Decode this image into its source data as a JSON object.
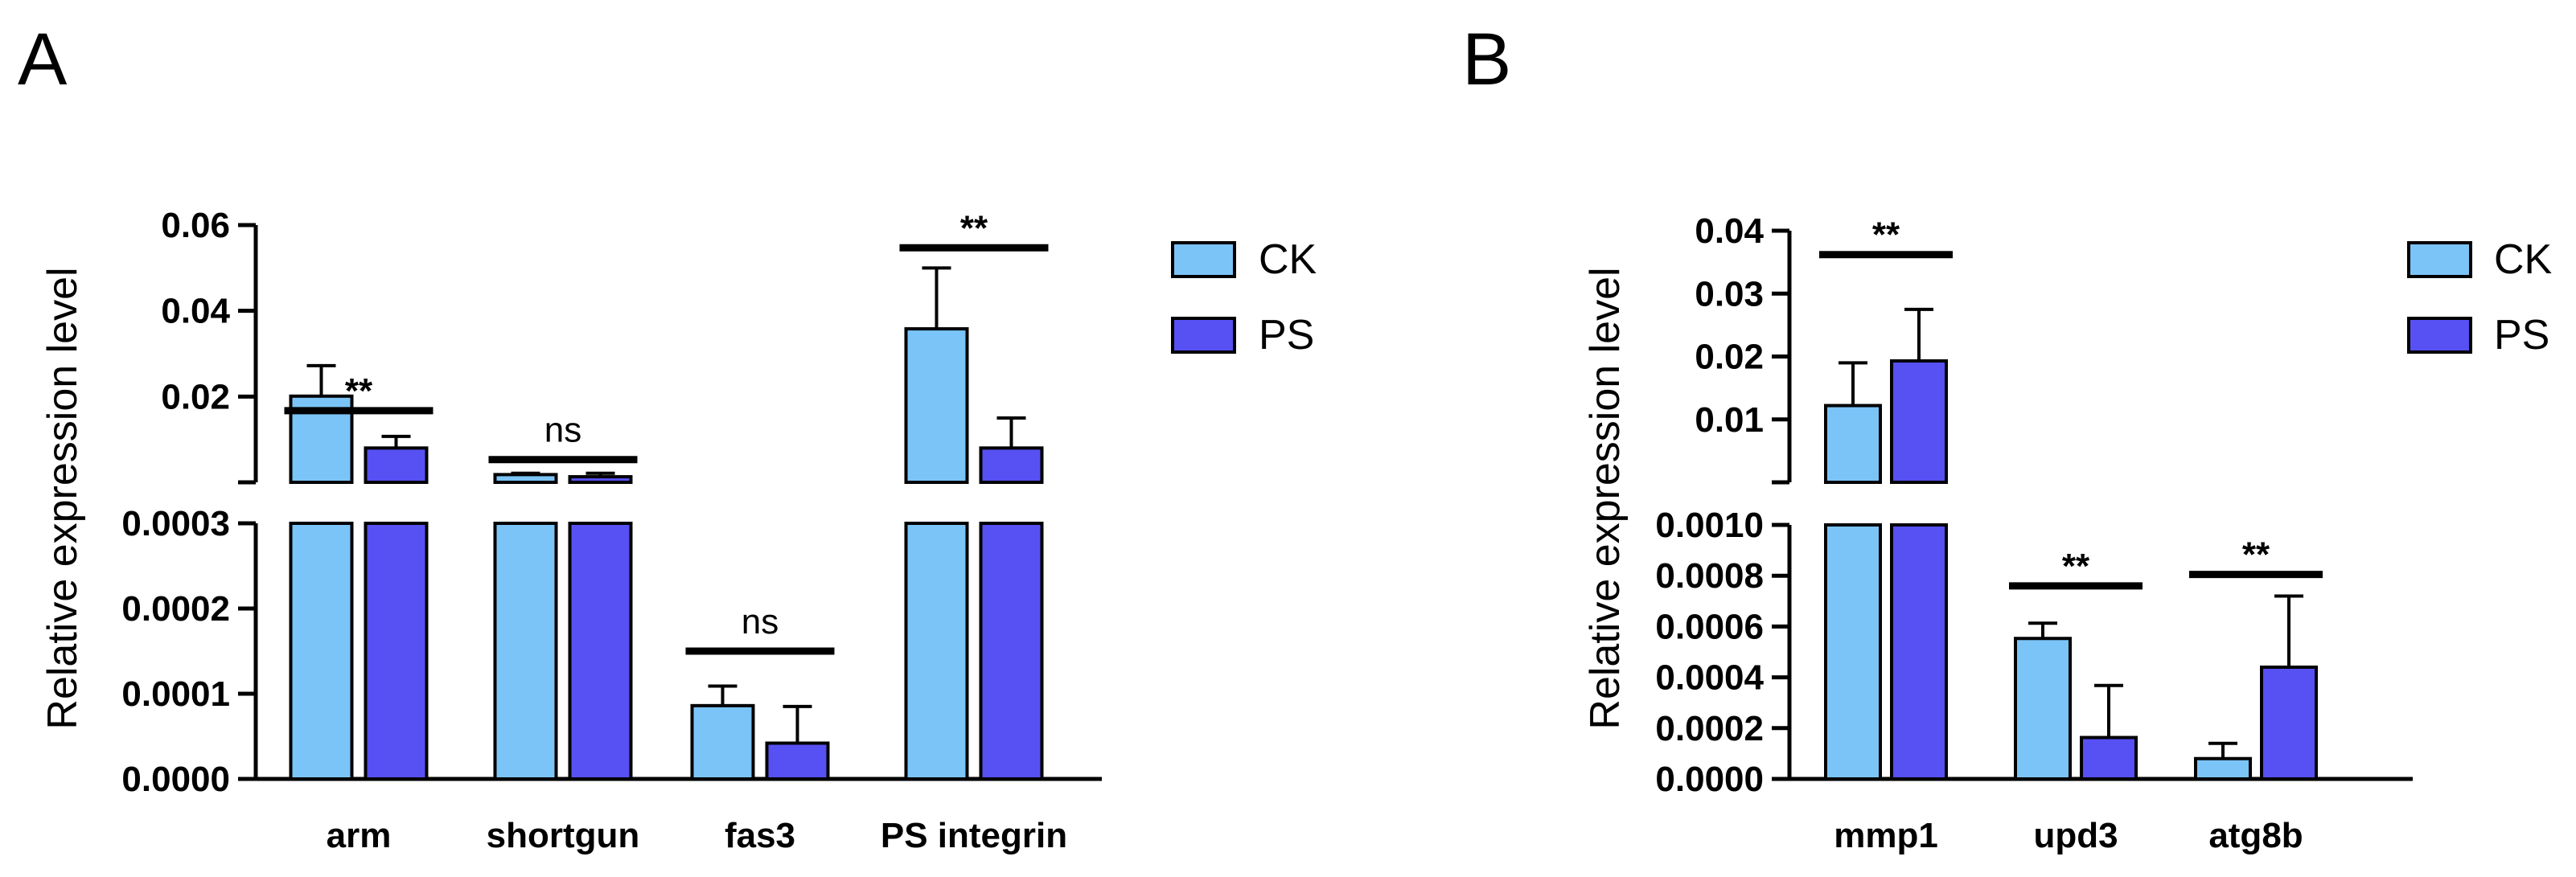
{
  "chart_data": [
    {
      "panel": "A",
      "type": "bar",
      "ylabel": "Relative expression level",
      "categories": [
        "arm",
        "shortgun",
        "fas3",
        "PS integrin"
      ],
      "series": [
        {
          "name": "CK",
          "color": "#7BC4F7",
          "values": [
            0.0201,
            0.0018,
            8.6e-05,
            0.0358
          ],
          "errors": [
            0.0071,
            0.0003,
            2.3e-05,
            0.0142
          ]
        },
        {
          "name": "PS",
          "color": "#5750F2",
          "values": [
            0.008,
            0.0013,
            4.2e-05,
            0.008
          ],
          "errors": [
            0.0027,
            0.0008,
            4.3e-05,
            0.007
          ]
        }
      ],
      "axis_break": true,
      "lower_range": [
        0,
        0.0003
      ],
      "upper_range": [
        0,
        0.06
      ],
      "lower_ticks": [
        "0.0000",
        "0.0001",
        "0.0002",
        "0.0003"
      ],
      "upper_ticks": [
        "0.02",
        "0.04",
        "0.06"
      ],
      "significance": [
        {
          "category": "arm",
          "label": "**",
          "segment": "upper",
          "value": 0.0167
        },
        {
          "category": "shortgun",
          "label": "ns",
          "segment": "upper",
          "value": 0.0053
        },
        {
          "category": "fas3",
          "label": "ns",
          "segment": "lower",
          "value": 0.00015
        },
        {
          "category": "PS integrin",
          "label": "**",
          "segment": "upper",
          "value": 0.0547
        }
      ],
      "legend_position": "right"
    },
    {
      "panel": "B",
      "type": "bar",
      "ylabel": "Relative expression level",
      "categories": [
        "mmp1",
        "upd3",
        "atg8b"
      ],
      "series": [
        {
          "name": "CK",
          "color": "#7BC4F7",
          "values": [
            0.0122,
            0.000553,
            8e-05
          ],
          "errors": [
            0.0068,
            6e-05,
            6e-05
          ]
        },
        {
          "name": "PS",
          "color": "#5750F2",
          "values": [
            0.0193,
            0.000163,
            0.00044
          ],
          "errors": [
            0.0082,
            0.000205,
            0.00028
          ]
        }
      ],
      "axis_break": true,
      "lower_range": [
        0,
        0.001
      ],
      "upper_range": [
        0,
        0.04
      ],
      "lower_ticks": [
        "0.0000",
        "0.0002",
        "0.0004",
        "0.0006",
        "0.0008",
        "0.0010"
      ],
      "upper_ticks": [
        "0.01",
        "0.02",
        "0.03",
        "0.04"
      ],
      "significance": [
        {
          "category": "mmp1",
          "label": "**",
          "segment": "upper",
          "value": 0.0362
        },
        {
          "category": "upd3",
          "label": "**",
          "segment": "lower",
          "value": 0.00076
        },
        {
          "category": "atg8b",
          "label": "**",
          "segment": "lower",
          "value": 0.000805
        }
      ],
      "legend_position": "right"
    }
  ],
  "legend": [
    {
      "name": "CK",
      "color": "#7BC4F7"
    },
    {
      "name": "PS",
      "color": "#5750F2"
    }
  ]
}
